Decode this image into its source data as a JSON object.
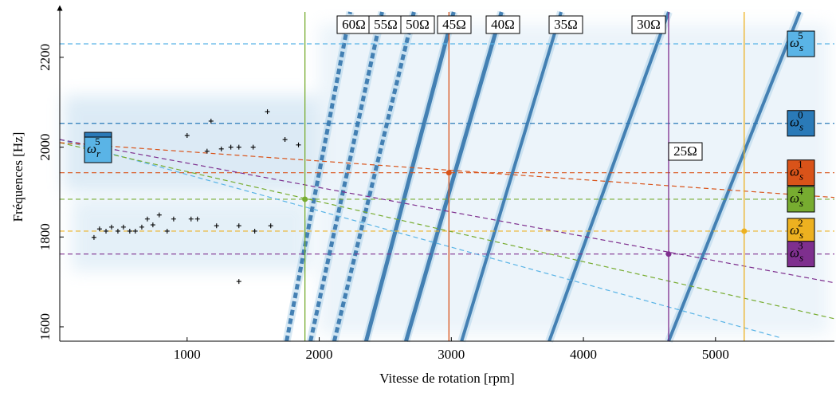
{
  "chart_data": {
    "type": "spectrogram",
    "x_label": "Vitesse de rotation [rpm]",
    "y_label": "Fréquences [Hz]",
    "xlim": [
      36,
      5900
    ],
    "ylim": [
      1568,
      2301
    ],
    "xticks": [
      1000,
      2000,
      3000,
      4000,
      5000
    ],
    "yticks": [
      1600,
      1800,
      2000,
      2200
    ],
    "ridges": [
      {
        "name": "60Ω",
        "x": [
          1753,
          2235
        ],
        "y": [
          1568,
          2301
        ]
      },
      {
        "name": "55Ω",
        "x": [
          1934,
          2476
        ],
        "y": [
          1568,
          2301
        ]
      },
      {
        "name": "50Ω",
        "x": [
          2114,
          2717
        ],
        "y": [
          1568,
          2301
        ]
      },
      {
        "name": "45Ω",
        "x": [
          2355,
          3018
        ],
        "y": [
          1568,
          2301
        ]
      },
      {
        "name": "40Ω",
        "x": [
          2657,
          3380
        ],
        "y": [
          1568,
          2301
        ]
      },
      {
        "name": "35Ω",
        "x": [
          3078,
          3831
        ],
        "y": [
          1568,
          2301
        ]
      },
      {
        "name": "30Ω",
        "x": [
          3741,
          4645
        ],
        "y": [
          1568,
          2301
        ]
      },
      {
        "name": "25Ω",
        "x": [
          4645,
          5639
        ],
        "y": [
          1568,
          2301
        ]
      }
    ],
    "stator_lines": [
      {
        "symbol": "ω",
        "sub": "s",
        "sup": "5",
        "color": "#5ab4e6",
        "value": 2230
      },
      {
        "symbol": "ω",
        "sub": "s",
        "sup": "0",
        "color": "#2a7ab8",
        "value": 2053
      },
      {
        "symbol": "ω",
        "sub": "s",
        "sup": "1",
        "color": "#d95319",
        "value": 1943
      },
      {
        "symbol": "ω",
        "sub": "s",
        "sup": "4",
        "color": "#77ac30",
        "value": 1884
      },
      {
        "symbol": "ω",
        "sub": "s",
        "sup": "2",
        "color": "#edb120",
        "value": 1813
      },
      {
        "symbol": "ω",
        "sub": "s",
        "sup": "3",
        "color": "#7e2f8e",
        "value": 1762
      }
    ],
    "vlines": [
      {
        "color": "#77ac30",
        "x": 1892,
        "point_y": 1884
      },
      {
        "color": "#d95319",
        "x": 2982,
        "point_y": 1943
      },
      {
        "color": "#7e2f8e",
        "x": 4645,
        "point_y": 1762
      },
      {
        "color": "#edb120",
        "x": 5217,
        "point_y": 1813
      }
    ],
    "rotor_curves": [
      {
        "color": "#5ab4e6",
        "x": [
          36,
          5500
        ],
        "y": [
          2017,
          1575
        ]
      },
      {
        "color": "#7e2f8e",
        "x": [
          36,
          5900
        ],
        "y": [
          2017,
          1698
        ]
      },
      {
        "color": "#77ac30",
        "x": [
          36,
          5900
        ],
        "y": [
          2010,
          1618
        ]
      },
      {
        "color": "#d95319",
        "x": [
          36,
          5900
        ],
        "y": [
          2010,
          1888
        ]
      }
    ],
    "rotor_label": {
      "symbol": "ω",
      "sub": "r",
      "sup": "5"
    },
    "markers": {
      "x": [
        295,
        337,
        386,
        428,
        476,
        518,
        566,
        608,
        657,
        699,
        741,
        789,
        849,
        898,
        1030,
        1078,
        1000,
        1181,
        1151,
        1259,
        1331,
        1392,
        1500,
        1608,
        1741,
        1223,
        1392,
        1512,
        1633,
        1392,
        1843
      ],
      "y": [
        1799,
        1818,
        1813,
        1822,
        1813,
        1822,
        1813,
        1813,
        1822,
        1840,
        1827,
        1849,
        1813,
        1840,
        1840,
        1840,
        2026,
        2058,
        1991,
        1996,
        2000,
        2000,
        2000,
        2079,
        2017,
        1825,
        1825,
        1813,
        1825,
        1701,
        2005
      ]
    }
  }
}
